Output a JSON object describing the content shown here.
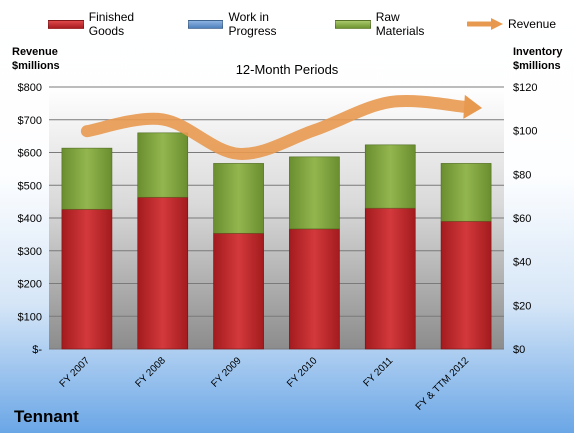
{
  "company": "Tennant",
  "chart_data": {
    "type": "bar",
    "title": "12-Month Periods",
    "categories": [
      "FY 2007",
      "FY 2008",
      "FY 2009",
      "FY 2010",
      "FY 2011",
      "FY & TTM 2012"
    ],
    "series": [
      {
        "name": "Finished Goods",
        "axis": "right",
        "values": [
          64,
          69.5,
          53,
          55,
          64.5,
          58.5
        ],
        "color": "#c0282b"
      },
      {
        "name": "Work in Progress",
        "axis": "right",
        "values": [
          0,
          0,
          0,
          0,
          0,
          0
        ],
        "color": "#4f81bd"
      },
      {
        "name": "Raw Materials",
        "axis": "right",
        "values": [
          28,
          29.5,
          32,
          33,
          29,
          26.5
        ],
        "color": "#7ea33d"
      },
      {
        "name": "Revenue",
        "type": "line",
        "axis": "left",
        "values": [
          665,
          701,
          596,
          668,
          754,
          739
        ],
        "color": "#e89950"
      }
    ],
    "y_left": {
      "title_line1": "Revenue",
      "title_line2": "$millions",
      "ylim": [
        0,
        800
      ],
      "ticks": [
        0,
        100,
        200,
        300,
        400,
        500,
        600,
        700,
        800
      ],
      "tick_labels": [
        "$-",
        "$100",
        "$200",
        "$300",
        "$400",
        "$500",
        "$600",
        "$700",
        "$800"
      ]
    },
    "y_right": {
      "title_line1": "Inventory",
      "title_line2": "$millions",
      "ylim": [
        0,
        120
      ],
      "ticks": [
        0,
        20,
        40,
        60,
        80,
        100,
        120
      ],
      "tick_labels": [
        "$0",
        "$20",
        "$40",
        "$60",
        "$80",
        "$100",
        "$120"
      ]
    },
    "stacked": true,
    "grid": true,
    "legend": "top"
  }
}
